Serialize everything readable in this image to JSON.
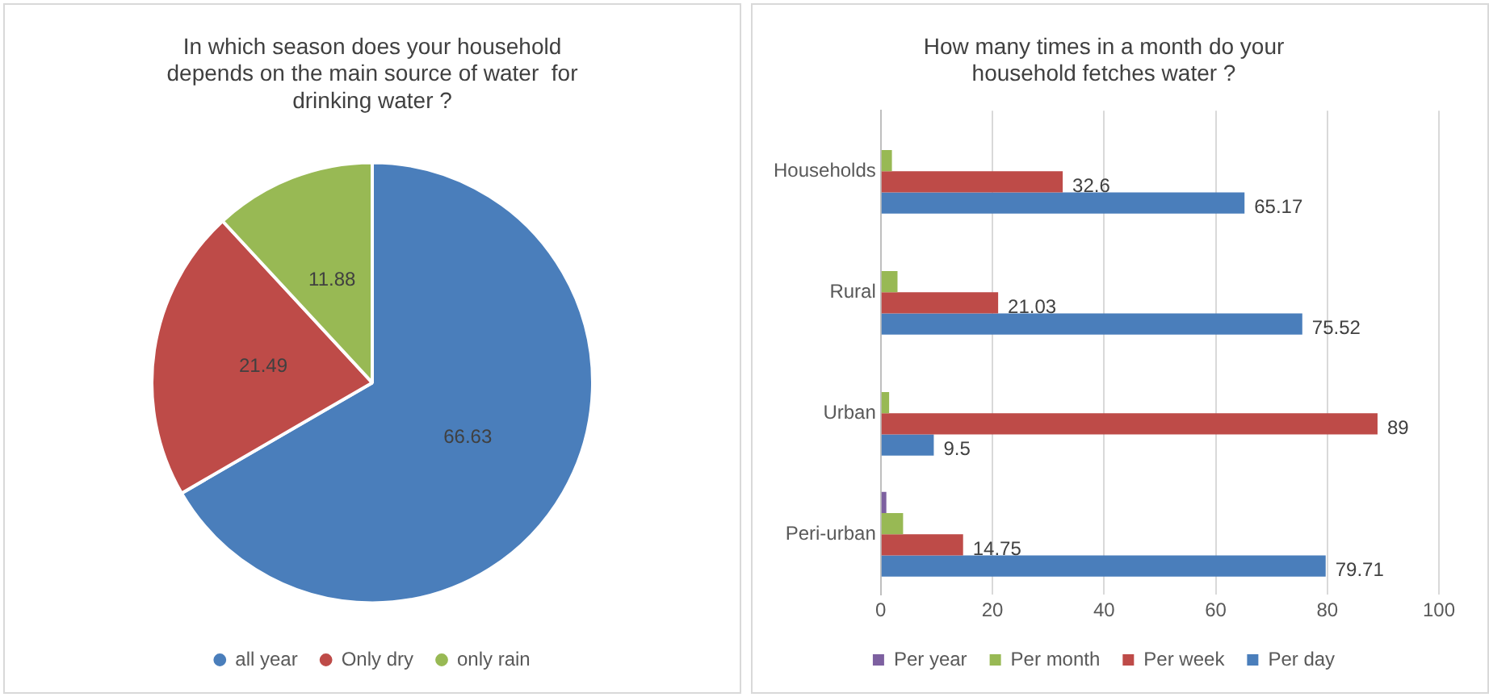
{
  "chart_data": [
    {
      "type": "pie",
      "title": "In which season does your household depends on the main source of water  for drinking water ?",
      "categories": [
        "all year",
        "Only dry",
        "only rain"
      ],
      "values": [
        66.63,
        21.49,
        11.88
      ],
      "colors": [
        "#4a7ebb",
        "#be4b48",
        "#98b954"
      ],
      "data_labels": true,
      "legend": "bottom"
    },
    {
      "type": "bar",
      "orientation": "horizontal",
      "title": "How many times in a month do your household fetches water ?",
      "categories": [
        "Households",
        "Rural",
        "Urban",
        "Peri-urban"
      ],
      "series": [
        {
          "name": "Per year",
          "color": "#7d60a0",
          "values": [
            0,
            0,
            0,
            1
          ]
        },
        {
          "name": "Per month",
          "color": "#98b954",
          "values": [
            2,
            3,
            1.5,
            4
          ]
        },
        {
          "name": "Per week",
          "color": "#be4b48",
          "values": [
            32.6,
            21.03,
            89,
            14.75
          ],
          "value_labels": [
            "32.6",
            "21.03",
            "89",
            "14.75"
          ]
        },
        {
          "name": "Per day",
          "color": "#4a7ebb",
          "values": [
            65.17,
            75.52,
            9.5,
            79.71
          ],
          "value_labels": [
            "65.17",
            "75.52",
            "9.5",
            "79.71"
          ]
        }
      ],
      "xlim": [
        0,
        100
      ],
      "xticks": [
        0,
        20,
        40,
        60,
        80,
        100
      ],
      "grid": "x",
      "legend": "bottom"
    }
  ]
}
